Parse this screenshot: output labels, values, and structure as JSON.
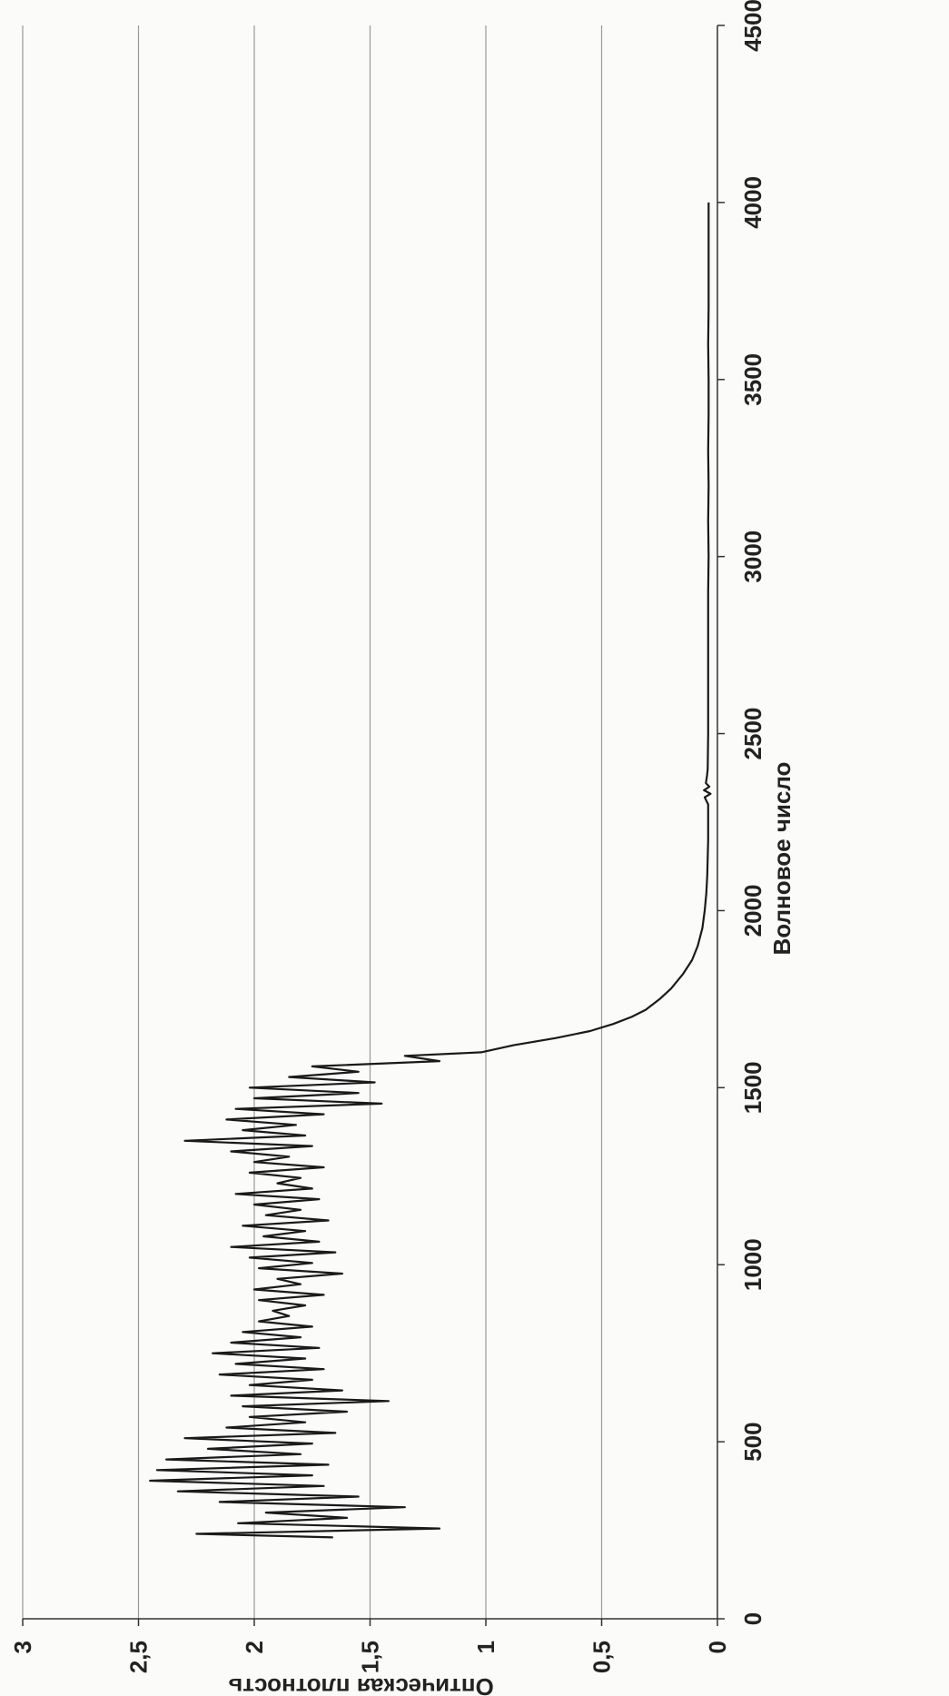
{
  "chart_data": {
    "type": "line",
    "orientation": "rotated-90-clockwise",
    "title": "",
    "xlabel": "Волновое число",
    "ylabel": "Оптическая плотность",
    "xlim": [
      0,
      4500
    ],
    "ylim": [
      0,
      3
    ],
    "xticks": [
      "0",
      "500",
      "1000",
      "1500",
      "2000",
      "2500",
      "3000",
      "3500",
      "4000",
      "4500"
    ],
    "yticks": [
      "0",
      "0,5",
      "1",
      "1,5",
      "2",
      "2,5",
      "3"
    ],
    "grid": "horizontal",
    "legend": "none",
    "series": [
      {
        "color": "#1a1a1a",
        "x": [
          230,
          240,
          255,
          270,
          285,
          300,
          315,
          330,
          345,
          360,
          375,
          390,
          405,
          420,
          435,
          450,
          465,
          480,
          495,
          510,
          525,
          540,
          555,
          570,
          585,
          600,
          615,
          630,
          645,
          660,
          675,
          690,
          705,
          720,
          735,
          750,
          765,
          780,
          795,
          810,
          825,
          840,
          855,
          870,
          885,
          900,
          915,
          930,
          945,
          960,
          975,
          990,
          1005,
          1020,
          1035,
          1050,
          1065,
          1080,
          1095,
          1110,
          1125,
          1140,
          1155,
          1170,
          1185,
          1200,
          1215,
          1230,
          1245,
          1260,
          1275,
          1290,
          1305,
          1320,
          1335,
          1350,
          1365,
          1380,
          1395,
          1410,
          1425,
          1440,
          1455,
          1470,
          1485,
          1500,
          1515,
          1530,
          1545,
          1560,
          1575,
          1590,
          1600,
          1620,
          1640,
          1660,
          1680,
          1700,
          1720,
          1750,
          1780,
          1820,
          1860,
          1900,
          1950,
          2000,
          2050,
          2100,
          2150,
          2200,
          2250,
          2300,
          2320,
          2330,
          2340,
          2350,
          2360,
          2380,
          2400,
          2500,
          2600,
          2700,
          2800,
          2900,
          3000,
          3100,
          3200,
          3300,
          3400,
          3500,
          3600,
          3700,
          3800,
          3900,
          4000
        ],
        "y": [
          1.66,
          2.25,
          1.2,
          2.07,
          1.6,
          1.95,
          1.35,
          2.15,
          1.55,
          2.33,
          1.7,
          2.45,
          1.75,
          2.42,
          1.68,
          2.38,
          1.8,
          2.2,
          1.75,
          2.3,
          1.65,
          2.12,
          1.78,
          2.02,
          1.6,
          2.05,
          1.42,
          2.1,
          1.62,
          2.02,
          1.75,
          2.15,
          1.7,
          2.08,
          1.78,
          2.18,
          1.72,
          2.1,
          1.8,
          2.05,
          1.75,
          1.98,
          1.85,
          1.92,
          1.78,
          1.98,
          1.7,
          2.0,
          1.8,
          1.9,
          1.62,
          1.98,
          1.75,
          2.02,
          1.65,
          2.1,
          1.72,
          1.96,
          1.78,
          2.05,
          1.68,
          1.95,
          1.8,
          2.0,
          1.72,
          2.08,
          1.75,
          1.9,
          1.8,
          2.02,
          1.7,
          2.0,
          1.85,
          2.1,
          1.75,
          2.3,
          1.78,
          2.05,
          1.82,
          2.12,
          1.7,
          2.08,
          1.45,
          2.0,
          1.55,
          2.02,
          1.48,
          1.85,
          1.55,
          1.75,
          1.2,
          1.35,
          1.02,
          0.88,
          0.7,
          0.55,
          0.45,
          0.37,
          0.31,
          0.25,
          0.2,
          0.15,
          0.11,
          0.085,
          0.065,
          0.055,
          0.048,
          0.044,
          0.042,
          0.04,
          0.04,
          0.04,
          0.055,
          0.03,
          0.058,
          0.035,
          0.05,
          0.045,
          0.042,
          0.04,
          0.04,
          0.04,
          0.04,
          0.04,
          0.038,
          0.04,
          0.038,
          0.04,
          0.038,
          0.038,
          0.04,
          0.038,
          0.038,
          0.038,
          0.038
        ]
      }
    ]
  }
}
